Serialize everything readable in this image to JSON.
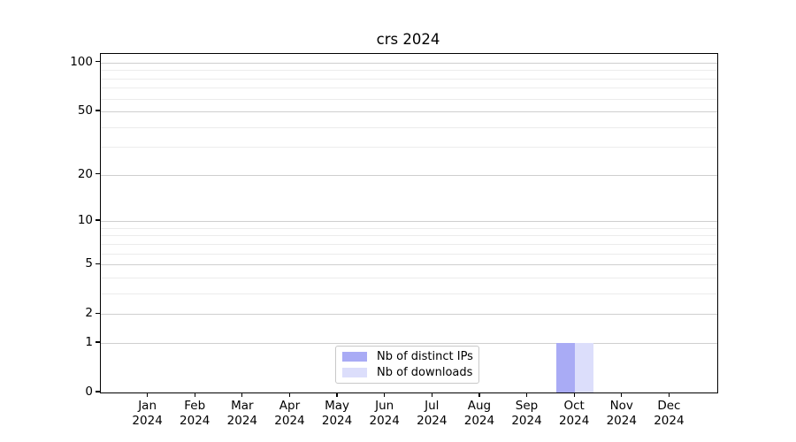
{
  "chart_data": {
    "type": "bar",
    "title": "crs 2024",
    "categories": [
      "Jan 2024",
      "Feb 2024",
      "Mar 2024",
      "Apr 2024",
      "May 2024",
      "Jun 2024",
      "Jul 2024",
      "Aug 2024",
      "Sep 2024",
      "Oct 2024",
      "Nov 2024",
      "Dec 2024"
    ],
    "series": [
      {
        "name": "Nb of distinct IPs",
        "color": "#a9abf5",
        "values": [
          0,
          0,
          0,
          0,
          0,
          0,
          0,
          0,
          0,
          1,
          0,
          0
        ]
      },
      {
        "name": "Nb of downloads",
        "color": "#dcdefb",
        "values": [
          0,
          0,
          0,
          0,
          0,
          0,
          0,
          0,
          0,
          1,
          0,
          0
        ]
      }
    ],
    "xlabel": "",
    "ylabel": "",
    "y_scale": "log10(1+value)",
    "y_major_ticks": [
      0,
      1,
      2,
      5,
      10,
      20,
      50,
      100
    ],
    "y_minor_ticks": [
      3,
      4,
      6,
      7,
      8,
      9,
      30,
      40,
      60,
      70,
      80,
      90
    ],
    "y_axis_top_value": 113,
    "grid": {
      "horizontal": true,
      "vertical": false,
      "minor": true
    },
    "legend": {
      "position": "lower center"
    },
    "colors": {
      "major_grid": "#cfcfcf",
      "minor_grid": "#ececec",
      "spine": "#000000",
      "text": "#000000",
      "background": "#ffffff"
    }
  }
}
